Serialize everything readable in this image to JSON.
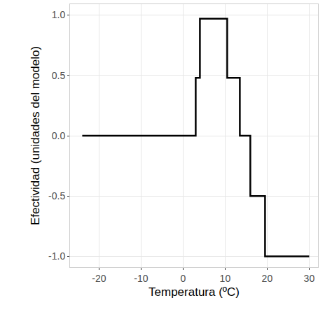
{
  "chart_data": {
    "type": "step",
    "x_label": "Temperatura (ºC)",
    "y_label": "Efectividad (unidades del modelo)",
    "x": [
      -24,
      3,
      4,
      10.5,
      13.5,
      16,
      19.5,
      30
    ],
    "values": [
      0,
      0.48,
      0.97,
      0.48,
      0,
      -0.5,
      -1,
      -1
    ],
    "color": "#000000",
    "xlim": [
      -26.9,
      32.1
    ],
    "xticks": [
      -20,
      -10,
      0,
      10,
      20,
      30
    ],
    "ylim": [
      -1.09,
      1.09
    ],
    "yticks": [
      {
        "value": -1,
        "label": "-1.0"
      },
      {
        "value": -0.5,
        "label": "-0.5"
      },
      {
        "value": 0,
        "label": "0.0"
      },
      {
        "value": 0.5,
        "label": "0.5"
      },
      {
        "value": 1,
        "label": "1.0"
      }
    ],
    "grid": true
  }
}
